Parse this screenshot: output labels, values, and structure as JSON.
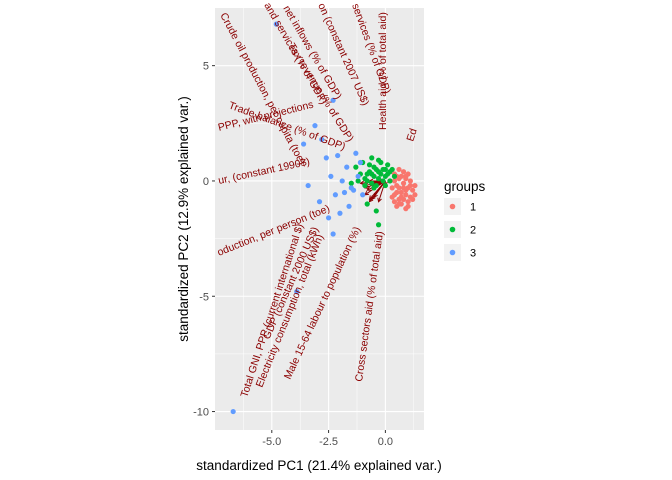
{
  "chart_data": {
    "type": "scatter",
    "subtype": "pca-biplot",
    "xlabel": "standardized PC1 (21.4% explained var.)",
    "ylabel": "standardized PC2 (12.9% explained var.)",
    "xlim": [
      -7.5,
      1.7
    ],
    "ylim": [
      -10.8,
      7.5
    ],
    "x_ticks": [
      -5.0,
      -2.5,
      0.0
    ],
    "x_tick_labels": [
      "-5.0",
      "-2.5",
      "0.0"
    ],
    "y_ticks": [
      -10,
      -5,
      0,
      5
    ],
    "y_tick_labels": [
      "-10",
      "-5",
      "0",
      "5"
    ],
    "grid": true,
    "legend": {
      "title": "groups",
      "position": "right",
      "entries": [
        {
          "label": "1",
          "color": "#F8766D"
        },
        {
          "label": "2",
          "color": "#00BA38"
        },
        {
          "label": "3",
          "color": "#619CFF"
        }
      ]
    },
    "series": [
      {
        "name": "1",
        "color": "#F8766D",
        "points": [
          [
            0.4,
            0.3
          ],
          [
            0.6,
            0.1
          ],
          [
            0.8,
            -0.1
          ],
          [
            0.9,
            0.2
          ],
          [
            1.0,
            -0.3
          ],
          [
            0.7,
            -0.5
          ],
          [
            0.5,
            -0.2
          ],
          [
            1.1,
            0.0
          ],
          [
            0.9,
            -0.6
          ],
          [
            0.6,
            -0.8
          ],
          [
            1.2,
            -0.4
          ],
          [
            0.8,
            0.4
          ],
          [
            0.4,
            -0.6
          ],
          [
            1.0,
            -0.9
          ],
          [
            0.7,
            -1.0
          ],
          [
            0.3,
            -0.3
          ],
          [
            1.3,
            -0.2
          ],
          [
            0.5,
            -1.1
          ],
          [
            0.9,
            -1.2
          ],
          [
            1.1,
            -0.7
          ],
          [
            0.6,
            0.5
          ],
          [
            0.2,
            0.0
          ],
          [
            1.0,
            0.3
          ],
          [
            0.8,
            -0.3
          ],
          [
            0.5,
            0.2
          ],
          [
            1.2,
            -0.8
          ],
          [
            0.4,
            -0.9
          ],
          [
            0.7,
            0.2
          ],
          [
            1.0,
            -1.1
          ],
          [
            0.3,
            -0.7
          ],
          [
            0.9,
            -0.4
          ],
          [
            0.6,
            -0.3
          ],
          [
            1.1,
            -0.2
          ],
          [
            0.8,
            -0.8
          ],
          [
            0.5,
            -0.5
          ],
          [
            1.3,
            -0.6
          ],
          [
            0.7,
            -0.7
          ],
          [
            0.4,
            0.0
          ],
          [
            0.9,
            0.1
          ],
          [
            0.6,
            -1.0
          ]
        ]
      },
      {
        "name": "2",
        "color": "#00BA38",
        "points": [
          [
            -0.6,
            1.0
          ],
          [
            -0.3,
            0.9
          ],
          [
            -0.1,
            0.5
          ],
          [
            0.1,
            0.7
          ],
          [
            -0.8,
            0.3
          ],
          [
            -0.5,
            0.2
          ],
          [
            0.0,
            0.2
          ],
          [
            0.3,
            0.5
          ],
          [
            -1.0,
            0.8
          ],
          [
            -0.2,
            0.3
          ],
          [
            -0.7,
            0.7
          ],
          [
            0.2,
            0.0
          ],
          [
            -0.4,
            0.5
          ],
          [
            -0.9,
            0.1
          ],
          [
            -0.6,
            -0.1
          ],
          [
            -0.3,
            0.1
          ],
          [
            0.0,
            -0.2
          ],
          [
            -1.1,
            0.3
          ],
          [
            0.4,
            0.2
          ],
          [
            -0.5,
            0.6
          ],
          [
            -0.2,
            0.8
          ],
          [
            -0.8,
            0.0
          ],
          [
            0.1,
            0.3
          ],
          [
            -1.3,
            0.6
          ],
          [
            -0.4,
            -0.2
          ],
          [
            -0.9,
            -0.2
          ],
          [
            -0.1,
            0.0
          ],
          [
            -0.7,
            0.4
          ],
          [
            0.2,
            0.4
          ],
          [
            -1.2,
            0.0
          ],
          [
            -0.3,
            0.4
          ],
          [
            -0.5,
            -0.3
          ],
          [
            -0.3,
            -1.9
          ],
          [
            -0.4,
            -1.3
          ],
          [
            -0.8,
            -1.0
          ],
          [
            -1.5,
            -0.1
          ],
          [
            0.0,
            0.5
          ],
          [
            -0.6,
            0.3
          ]
        ]
      },
      {
        "name": "3",
        "color": "#619CFF",
        "points": [
          [
            -6.7,
            -10.0
          ],
          [
            -4.8,
            6.8
          ],
          [
            -3.9,
            -4.8
          ],
          [
            -3.1,
            2.4
          ],
          [
            -2.8,
            1.8
          ],
          [
            -2.6,
            1.0
          ],
          [
            -2.3,
            3.5
          ],
          [
            -2.1,
            1.1
          ],
          [
            -2.0,
            -1.4
          ],
          [
            -2.3,
            -2.3
          ],
          [
            -1.7,
            0.6
          ],
          [
            -1.8,
            -0.5
          ],
          [
            -1.5,
            -0.3
          ],
          [
            -1.9,
            0.0
          ],
          [
            -1.3,
            1.2
          ],
          [
            -2.2,
            -0.6
          ],
          [
            -2.9,
            -0.9
          ],
          [
            -1.6,
            -1.1
          ],
          [
            -1.2,
            0.2
          ],
          [
            -3.4,
            -0.2
          ],
          [
            -2.4,
            0.2
          ],
          [
            -1.4,
            -0.4
          ],
          [
            -1.1,
            0.8
          ],
          [
            -1.0,
            -0.6
          ],
          [
            -2.5,
            -1.6
          ],
          [
            -3.6,
            1.6
          ]
        ]
      }
    ],
    "loadings": [
      {
        "label": "Crude oil production, per capita (toe)",
        "end": [
          -1.1,
          -0.1
        ]
      },
      {
        "label": "and services (% of GDP)",
        "end": [
          -0.7,
          0.0
        ]
      },
      {
        "label": "net inflows (% of GDP)",
        "end": [
          -0.6,
          -0.1
        ]
      },
      {
        "label": "on (constant 2007 US$)",
        "end": [
          -0.5,
          -0.1
        ]
      },
      {
        "label": "services (% of GDP)",
        "end": [
          -0.4,
          0.0
        ]
      },
      {
        "label": "Health aid (% of total aid)",
        "end": [
          -0.3,
          0.0
        ]
      },
      {
        "label": "Trade balance (% of GDP)",
        "end": [
          -0.9,
          -0.3
        ]
      },
      {
        "label": "Tax revenue (% of GDP)",
        "end": [
          -0.6,
          -0.3
        ]
      },
      {
        "label": "Ed",
        "end": [
          0.0,
          -0.2
        ]
      },
      {
        "label": "PPP, with projections",
        "end": [
          -0.9,
          -0.2
        ]
      },
      {
        "label": "ur, (constant 1990$)",
        "end": [
          -0.8,
          -0.4
        ]
      },
      {
        "label": "oduction, per person (toe)",
        "end": [
          -0.9,
          -0.6
        ]
      },
      {
        "label": "Total GNI, PPP (current international $)",
        "end": [
          -0.7,
          -0.8
        ]
      },
      {
        "label": "Electricity consumption, total (kWh)",
        "end": [
          -0.6,
          -0.8
        ]
      },
      {
        "label": "Male 15-64 labour to population (%)",
        "end": [
          -0.5,
          -0.7
        ]
      },
      {
        "label": "Cross sectors aid (% of total aid)",
        "end": [
          -0.3,
          -0.9
        ]
      },
      {
        "label": "GDP (constant 2000 US$)",
        "end": [
          -0.7,
          -0.9
        ]
      }
    ]
  }
}
